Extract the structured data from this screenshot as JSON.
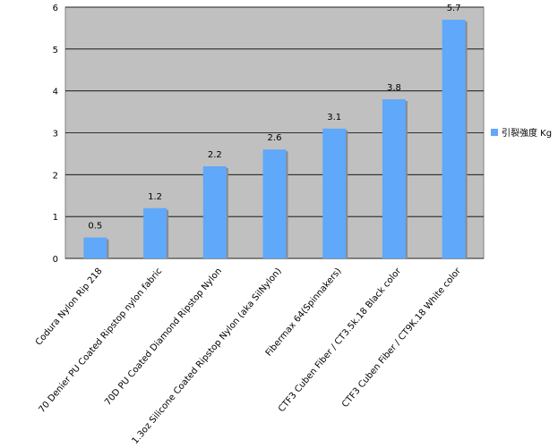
{
  "chart_data": {
    "type": "bar",
    "categories": [
      "Codura Nylon Rip 218",
      "70 Denier PU Coated Ripstop nylon fabric",
      "70D PU Coated Diamond Ripstop Nylon",
      "1.3oz Silicone Coated Ripstop Nylon (aka SilNylon)",
      "Fibermax 64(Spinnakers)",
      "CTF3 Cuben Fiber / CT3.5k.18 Black color",
      "CTF3 Cuben Fiber / CT9K.18 White color"
    ],
    "series": [
      {
        "name": "引裂強度 Kg",
        "color": "#5fa8fa",
        "values": [
          0.5,
          1.2,
          2.2,
          2.6,
          3.1,
          3.8,
          5.7
        ]
      }
    ],
    "ylim": [
      0,
      6
    ],
    "yticks": [
      0,
      1,
      2,
      3,
      4,
      5,
      6
    ],
    "grid": true,
    "legend": "right"
  }
}
